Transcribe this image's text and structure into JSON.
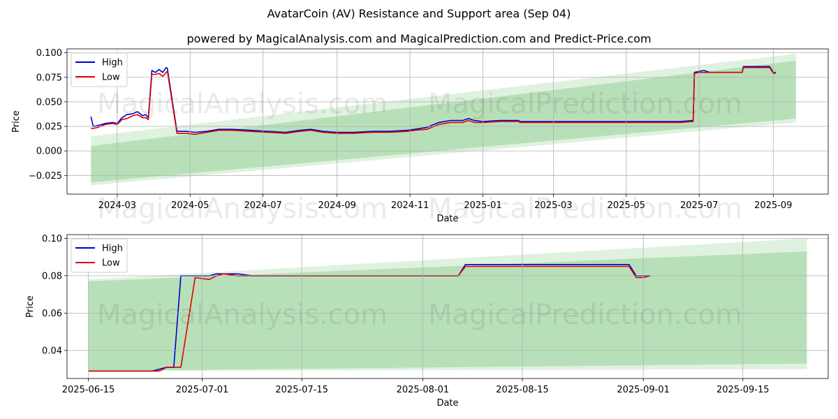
{
  "title": "AvatarCoin (AV) Resistance and Support area (Sep 04)",
  "subtitle": "powered by MagicalAnalysis.com and MagicalPrediction.com and Predict-Price.com",
  "watermark": {
    "left": "MagicalAnalysis.com",
    "right": "MagicalPrediction.com"
  },
  "colors": {
    "high": "#0000cc",
    "low": "#dd0000",
    "band": "#6fbf6f",
    "grid": "#b0b0b0"
  },
  "chart_data": [
    {
      "type": "line",
      "xlabel": "Date",
      "ylabel": "Price",
      "xlim": [
        "2024-01-19",
        "2025-10-17"
      ],
      "ylim": [
        -0.044,
        0.104
      ],
      "grid": true,
      "legend": "top-left",
      "legend_entries": [
        "High",
        "Low"
      ],
      "xticks": [
        "2024-03",
        "2024-05",
        "2024-07",
        "2024-09",
        "2024-11",
        "2025-01",
        "2025-03",
        "2025-05",
        "2025-07",
        "2025-09"
      ],
      "yticks": [
        "−0.025",
        "0.000",
        "0.025",
        "0.050",
        "0.075",
        "0.100"
      ],
      "bands": [
        {
          "x": [
            "2024-02-08",
            "2025-09-20"
          ],
          "upper": [
            0.015,
            0.099
          ],
          "lower": [
            -0.035,
            0.029
          ]
        },
        {
          "x": [
            "2024-02-08",
            "2025-09-20"
          ],
          "upper": [
            0.005,
            0.092
          ],
          "lower": [
            -0.032,
            0.033
          ]
        }
      ],
      "series": [
        {
          "name": "High",
          "x": [
            "2024-02-08",
            "2024-02-10",
            "2024-02-14",
            "2024-02-20",
            "2024-02-26",
            "2024-03-01",
            "2024-03-05",
            "2024-03-09",
            "2024-03-14",
            "2024-03-18",
            "2024-03-22",
            "2024-03-25",
            "2024-03-27",
            "2024-03-30",
            "2024-04-02",
            "2024-04-05",
            "2024-04-08",
            "2024-04-11",
            "2024-04-12",
            "2024-04-20",
            "2024-04-28",
            "2024-05-05",
            "2024-05-15",
            "2024-05-25",
            "2024-06-05",
            "2024-06-20",
            "2024-07-05",
            "2024-07-20",
            "2024-08-01",
            "2024-08-10",
            "2024-08-20",
            "2024-09-01",
            "2024-09-15",
            "2024-10-01",
            "2024-10-15",
            "2024-10-30",
            "2024-11-05",
            "2024-11-15",
            "2024-11-25",
            "2024-12-05",
            "2024-12-15",
            "2024-12-20",
            "2024-12-25",
            "2025-01-01",
            "2025-01-15",
            "2025-01-31",
            "2025-02-01",
            "2025-03-15",
            "2025-05-01",
            "2025-06-15",
            "2025-06-26",
            "2025-06-27",
            "2025-07-01",
            "2025-07-05",
            "2025-07-10",
            "2025-08-06",
            "2025-08-07",
            "2025-08-29",
            "2025-09-01",
            "2025-09-03"
          ],
          "y": [
            0.035,
            0.025,
            0.026,
            0.028,
            0.029,
            0.028,
            0.034,
            0.037,
            0.038,
            0.04,
            0.036,
            0.037,
            0.034,
            0.082,
            0.08,
            0.083,
            0.08,
            0.085,
            0.084,
            0.02,
            0.02,
            0.019,
            0.02,
            0.022,
            0.022,
            0.021,
            0.02,
            0.019,
            0.021,
            0.022,
            0.02,
            0.019,
            0.019,
            0.02,
            0.02,
            0.021,
            0.022,
            0.024,
            0.029,
            0.031,
            0.031,
            0.033,
            0.031,
            0.03,
            0.031,
            0.031,
            0.03,
            0.03,
            0.03,
            0.03,
            0.031,
            0.08,
            0.081,
            0.082,
            0.08,
            0.08,
            0.086,
            0.086,
            0.08,
            0.08
          ]
        },
        {
          "name": "Low",
          "x": [
            "2024-02-08",
            "2024-02-10",
            "2024-02-14",
            "2024-02-20",
            "2024-02-26",
            "2024-03-01",
            "2024-03-05",
            "2024-03-09",
            "2024-03-14",
            "2024-03-18",
            "2024-03-22",
            "2024-03-25",
            "2024-03-27",
            "2024-03-30",
            "2024-04-02",
            "2024-04-05",
            "2024-04-08",
            "2024-04-11",
            "2024-04-12",
            "2024-04-20",
            "2024-04-28",
            "2024-05-05",
            "2024-05-15",
            "2024-05-25",
            "2024-06-05",
            "2024-06-20",
            "2024-07-05",
            "2024-07-20",
            "2024-08-01",
            "2024-08-10",
            "2024-08-20",
            "2024-09-01",
            "2024-09-15",
            "2024-10-01",
            "2024-10-15",
            "2024-10-30",
            "2024-11-05",
            "2024-11-15",
            "2024-11-25",
            "2024-12-05",
            "2024-12-15",
            "2024-12-20",
            "2024-12-25",
            "2025-01-01",
            "2025-01-15",
            "2025-01-31",
            "2025-02-01",
            "2025-03-15",
            "2025-05-01",
            "2025-06-15",
            "2025-06-26",
            "2025-06-27",
            "2025-07-01",
            "2025-07-05",
            "2025-07-10",
            "2025-08-06",
            "2025-08-07",
            "2025-08-29",
            "2025-09-01",
            "2025-09-03"
          ],
          "y": [
            0.023,
            0.023,
            0.024,
            0.027,
            0.028,
            0.027,
            0.032,
            0.033,
            0.036,
            0.037,
            0.034,
            0.034,
            0.032,
            0.078,
            0.078,
            0.079,
            0.076,
            0.08,
            0.081,
            0.018,
            0.018,
            0.017,
            0.019,
            0.021,
            0.021,
            0.02,
            0.019,
            0.018,
            0.02,
            0.021,
            0.019,
            0.018,
            0.018,
            0.019,
            0.019,
            0.02,
            0.021,
            0.022,
            0.027,
            0.029,
            0.029,
            0.031,
            0.029,
            0.029,
            0.03,
            0.03,
            0.029,
            0.029,
            0.029,
            0.029,
            0.03,
            0.079,
            0.08,
            0.08,
            0.08,
            0.08,
            0.085,
            0.085,
            0.079,
            0.079
          ]
        }
      ]
    },
    {
      "type": "line",
      "xlabel": "Date",
      "ylabel": "Price",
      "xlim": [
        "2025-06-12",
        "2025-09-27"
      ],
      "ylim": [
        0.025,
        0.102
      ],
      "grid": true,
      "legend": "top-left",
      "legend_entries": [
        "High",
        "Low"
      ],
      "xticks": [
        "2025-06-15",
        "2025-07-01",
        "2025-07-15",
        "2025-08-01",
        "2025-08-15",
        "2025-09-01",
        "2025-09-15"
      ],
      "yticks": [
        "0.04",
        "0.06",
        "0.08",
        "0.10"
      ],
      "bands": [
        {
          "x": [
            "2025-06-15",
            "2025-09-24"
          ],
          "upper": [
            0.078,
            0.1
          ],
          "lower": [
            0.029,
            0.03
          ]
        },
        {
          "x": [
            "2025-06-15",
            "2025-09-24"
          ],
          "upper": [
            0.077,
            0.093
          ],
          "lower": [
            0.029,
            0.033
          ]
        }
      ],
      "series": [
        {
          "name": "High",
          "x": [
            "2025-06-15",
            "2025-06-24",
            "2025-06-25",
            "2025-06-26",
            "2025-06-27",
            "2025-06-28",
            "2025-06-30",
            "2025-07-02",
            "2025-07-03",
            "2025-07-04",
            "2025-07-06",
            "2025-07-08",
            "2025-08-06",
            "2025-08-07",
            "2025-08-08",
            "2025-08-30",
            "2025-08-31",
            "2025-09-01",
            "2025-09-02"
          ],
          "y": [
            0.029,
            0.029,
            0.03,
            0.031,
            0.031,
            0.08,
            0.08,
            0.08,
            0.081,
            0.081,
            0.081,
            0.08,
            0.08,
            0.086,
            0.086,
            0.086,
            0.08,
            0.08,
            0.08
          ]
        },
        {
          "name": "Low",
          "x": [
            "2025-06-15",
            "2025-06-24",
            "2025-06-25",
            "2025-06-26",
            "2025-06-27",
            "2025-06-28",
            "2025-06-30",
            "2025-07-02",
            "2025-07-03",
            "2025-07-04",
            "2025-07-06",
            "2025-07-08",
            "2025-08-06",
            "2025-08-07",
            "2025-08-08",
            "2025-08-30",
            "2025-08-31",
            "2025-09-01",
            "2025-09-02"
          ],
          "y": [
            0.029,
            0.029,
            0.029,
            0.031,
            0.031,
            0.031,
            0.079,
            0.078,
            0.08,
            0.081,
            0.08,
            0.08,
            0.08,
            0.085,
            0.085,
            0.085,
            0.079,
            0.079,
            0.08
          ]
        }
      ]
    }
  ]
}
